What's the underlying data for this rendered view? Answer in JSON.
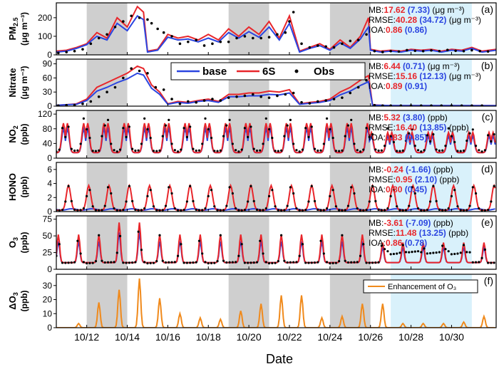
{
  "figure": {
    "xlabel": "Date",
    "x_ticks": [
      "10/12",
      "10/14",
      "10/16",
      "10/18",
      "10/20",
      "10/22",
      "10/24",
      "10/26",
      "10/28",
      "10/30"
    ],
    "x_range": [
      10.5,
      32.2
    ],
    "shaded_gray": [
      [
        12.0,
        14.0
      ],
      [
        19.0,
        21.0
      ],
      [
        24.0,
        26.0
      ]
    ],
    "shaded_blue": [
      [
        27.0,
        31.0
      ]
    ],
    "colors": {
      "base": "#2b45e0",
      "six_s": "#e8262b",
      "obs": "#000000",
      "enh": "#f08a1c",
      "gray": "#cfcfcf",
      "blue": "#d9f1fb",
      "mb_red": "#e8262b",
      "mb_blue": "#2b45e0"
    },
    "legend": {
      "base": "base",
      "six_s": "6S",
      "obs": "Obs"
    }
  },
  "chart_data": [
    {
      "type": "line",
      "panel": "(a)",
      "ylabel_main": "PM",
      "ylabel_sub": "2.5",
      "ylabel_unit": "(μg m⁻³)",
      "ylim": [
        0,
        280
      ],
      "yticks": [
        0,
        100,
        200
      ],
      "metrics": [
        {
          "label": "MB:",
          "red": "17.62",
          "blue": "(7.33)",
          "unit": "(μg m⁻³)"
        },
        {
          "label": "RMSE:",
          "red": "40.28",
          "blue": "(34.72)",
          "unit": "(μg m⁻³)"
        },
        {
          "label": "IOA:",
          "red": "0.86",
          "blue": "(0.86)",
          "unit": ""
        }
      ],
      "series": [
        {
          "name": "6S",
          "x": [
            10.5,
            11.0,
            11.5,
            12.0,
            12.5,
            13.0,
            13.5,
            14.0,
            14.5,
            14.8,
            15.0,
            15.5,
            16.0,
            16.5,
            17.0,
            17.5,
            18.0,
            18.5,
            19.0,
            19.5,
            20.0,
            20.5,
            21.0,
            21.5,
            22.0,
            22.5,
            23.0,
            23.5,
            24.0,
            24.5,
            25.0,
            25.5,
            25.9,
            26.0,
            26.5,
            27.0,
            27.5,
            28.0,
            28.5,
            29.0,
            29.5,
            30.0,
            30.5,
            31.0,
            31.5,
            32.2
          ],
          "y": [
            20,
            25,
            40,
            60,
            120,
            90,
            200,
            150,
            260,
            230,
            20,
            30,
            110,
            90,
            100,
            80,
            110,
            80,
            140,
            100,
            150,
            110,
            180,
            90,
            210,
            20,
            40,
            60,
            30,
            80,
            40,
            100,
            200,
            30,
            20,
            25,
            20,
            30,
            25,
            30,
            20,
            30,
            25,
            40,
            20,
            30
          ]
        },
        {
          "name": "base",
          "x": [
            10.5,
            11.0,
            11.5,
            12.0,
            12.5,
            13.0,
            13.5,
            14.0,
            14.5,
            14.8,
            15.0,
            15.5,
            16.0,
            16.5,
            17.0,
            17.5,
            18.0,
            18.5,
            19.0,
            19.5,
            20.0,
            20.5,
            21.0,
            21.5,
            22.0,
            22.5,
            23.0,
            23.5,
            24.0,
            24.5,
            25.0,
            25.5,
            25.9,
            26.0,
            26.5,
            27.0,
            27.5,
            28.0,
            28.5,
            29.0,
            29.5,
            30.0,
            30.5,
            31.0,
            31.5,
            32.2
          ],
          "y": [
            15,
            20,
            35,
            55,
            100,
            80,
            170,
            130,
            210,
            190,
            15,
            25,
            95,
            80,
            85,
            70,
            90,
            70,
            120,
            90,
            125,
            95,
            150,
            80,
            170,
            15,
            35,
            50,
            25,
            65,
            35,
            85,
            150,
            25,
            15,
            20,
            15,
            25,
            20,
            25,
            15,
            25,
            20,
            35,
            15,
            25
          ]
        },
        {
          "name": "Obs",
          "x": [
            10.6,
            11.0,
            11.4,
            11.8,
            12.2,
            12.6,
            13.0,
            13.4,
            13.8,
            14.2,
            14.6,
            15.0,
            15.2,
            15.5,
            15.8,
            16.2,
            16.6,
            17.0,
            17.4,
            17.8,
            18.2,
            18.6,
            19.0,
            19.4,
            19.8,
            20.2,
            20.6,
            21.0,
            21.4,
            21.8,
            22.0,
            22.2,
            22.6,
            23.0,
            23.4,
            23.8,
            24.2,
            24.6,
            25.0,
            25.4,
            25.8,
            26.2,
            26.6,
            27.0,
            27.4,
            27.8,
            28.2,
            28.6,
            29.0,
            29.4,
            29.8,
            30.2,
            30.6,
            31.0,
            31.4,
            31.8
          ],
          "y": [
            10,
            15,
            20,
            30,
            60,
            90,
            110,
            150,
            180,
            210,
            200,
            190,
            170,
            140,
            120,
            100,
            60,
            70,
            80,
            50,
            60,
            70,
            70,
            90,
            100,
            90,
            90,
            95,
            110,
            120,
            180,
            230,
            60,
            40,
            50,
            45,
            40,
            60,
            75,
            80,
            110,
            20,
            15,
            20,
            18,
            25,
            22,
            20,
            24,
            20,
            26,
            22,
            20,
            25,
            20,
            18
          ]
        }
      ]
    },
    {
      "type": "line",
      "panel": "(b)",
      "ylabel_main": "Nitrate",
      "ylabel_unit": "(μg m⁻³)",
      "ylim": [
        0,
        100
      ],
      "yticks": [
        0,
        30,
        60,
        90
      ],
      "metrics": [
        {
          "label": "MB:",
          "red": "6.44",
          "blue": "(0.71)",
          "unit": "(μg m⁻³)"
        },
        {
          "label": "RMSE:",
          "red": "15.16",
          "blue": "(12.13)",
          "unit": "(μg m⁻³)"
        },
        {
          "label": "IOA:",
          "red": "0.89",
          "blue": "(0.91)",
          "unit": ""
        }
      ],
      "series": [
        {
          "name": "6S",
          "x": [
            10.5,
            11.0,
            11.5,
            12.0,
            12.5,
            13.0,
            13.5,
            14.0,
            14.5,
            14.8,
            15.2,
            15.6,
            16.0,
            16.5,
            17.0,
            17.5,
            18.0,
            18.5,
            19.0,
            19.5,
            20.0,
            20.5,
            21.0,
            21.5,
            22.0,
            22.5,
            23.0,
            23.5,
            24.0,
            24.5,
            25.0,
            25.5,
            25.9,
            26.1,
            26.5,
            27.0,
            28.0,
            29.0,
            30.0,
            31.0,
            32.2
          ],
          "y": [
            2,
            3,
            5,
            15,
            40,
            50,
            60,
            70,
            85,
            80,
            45,
            30,
            5,
            10,
            8,
            12,
            15,
            10,
            25,
            25,
            28,
            28,
            32,
            30,
            35,
            5,
            8,
            10,
            15,
            30,
            40,
            55,
            65,
            3,
            2,
            1,
            1,
            1,
            1,
            1,
            1
          ]
        },
        {
          "name": "base",
          "x": [
            10.5,
            11.0,
            11.5,
            12.0,
            12.5,
            13.0,
            13.5,
            14.0,
            14.5,
            14.8,
            15.2,
            15.6,
            16.0,
            16.5,
            17.0,
            17.5,
            18.0,
            18.5,
            19.0,
            19.5,
            20.0,
            20.5,
            21.0,
            21.5,
            22.0,
            22.5,
            23.0,
            23.5,
            24.0,
            24.5,
            25.0,
            25.5,
            25.9,
            26.1,
            26.5,
            27.0,
            28.0,
            29.0,
            30.0,
            31.0,
            32.2
          ],
          "y": [
            2,
            3,
            4,
            12,
            32,
            40,
            50,
            58,
            70,
            66,
            38,
            25,
            4,
            8,
            6,
            10,
            12,
            8,
            20,
            20,
            22,
            22,
            25,
            24,
            28,
            4,
            6,
            8,
            12,
            24,
            32,
            44,
            52,
            2,
            2,
            1,
            1,
            1,
            1,
            1,
            1
          ]
        },
        {
          "name": "Obs",
          "x": [
            10.6,
            11.0,
            11.4,
            11.8,
            12.2,
            12.6,
            13.0,
            13.4,
            13.8,
            14.2,
            14.6,
            15.0,
            15.4,
            15.8,
            16.2,
            16.6,
            17.0,
            17.4,
            17.8,
            18.2,
            18.6,
            19.0,
            19.4,
            19.8,
            20.2,
            20.6,
            21.0,
            21.4,
            21.8,
            22.2,
            22.6,
            23.0,
            23.4,
            23.8,
            24.2,
            24.6,
            25.0,
            25.4,
            25.8,
            26.2,
            26.6,
            27.0,
            27.5,
            28.0,
            28.5,
            29.0,
            29.5,
            30.0,
            30.5,
            31.0,
            31.5
          ],
          "y": [
            1,
            2,
            2,
            5,
            10,
            20,
            30,
            40,
            60,
            80,
            75,
            70,
            40,
            35,
            15,
            5,
            10,
            8,
            12,
            15,
            12,
            18,
            20,
            22,
            25,
            20,
            18,
            22,
            25,
            28,
            8,
            6,
            10,
            12,
            15,
            18,
            28,
            40,
            55,
            2,
            1,
            1,
            1,
            1,
            1,
            1,
            1,
            1,
            1,
            1,
            1
          ]
        }
      ]
    },
    {
      "type": "line",
      "panel": "(c)",
      "ylabel_main": "NO",
      "ylabel_sub": "2",
      "ylabel_unit": "(ppb)",
      "ylim": [
        0,
        130
      ],
      "yticks": [
        0,
        40,
        80,
        120
      ],
      "metrics": [
        {
          "label": "MB:",
          "red": "5.32",
          "blue": "(3.80)",
          "unit": "(ppb)"
        },
        {
          "label": "RMSE:",
          "red": "16.40",
          "blue": "(13.85)",
          "unit": "(ppb)"
        },
        {
          "label": "IOA:",
          "red": "0.83",
          "blue": "(0.85)",
          "unit": ""
        }
      ],
      "series_note": "diurnal"
    },
    {
      "type": "line",
      "panel": "(d)",
      "ylabel_main": "HONO",
      "ylabel_unit": "(ppb)",
      "ylim": [
        0,
        7
      ],
      "yticks": [
        0,
        2,
        4,
        6
      ],
      "metrics": [
        {
          "label": "MB:",
          "red": "-0.24",
          "blue": "(-1.66)",
          "unit": "(ppb)"
        },
        {
          "label": "RMSE:",
          "red": "0.95",
          "blue": "(2.10)",
          "unit": "(ppb)"
        },
        {
          "label": "IOA:",
          "red": "0.80",
          "blue": "(0.45)",
          "unit": ""
        }
      ],
      "series_note": "diurnal"
    },
    {
      "type": "line",
      "panel": "(e)",
      "ylabel_main": "O",
      "ylabel_sub": "3",
      "ylabel_unit": "(ppb)",
      "ylim": [
        0,
        80
      ],
      "yticks": [
        0,
        25,
        50,
        75
      ],
      "metrics": [
        {
          "label": "MB:",
          "red": "-3.61",
          "blue": "(-7.09)",
          "unit": "(ppb)"
        },
        {
          "label": "RMSE:",
          "red": "11.48",
          "blue": "(13.25)",
          "unit": "(ppb)"
        },
        {
          "label": "IOA:",
          "red": "0.86",
          "blue": "(0.78)",
          "unit": ""
        }
      ],
      "series_note": "diurnal"
    },
    {
      "type": "line",
      "panel": "(f)",
      "ylabel_main": "ΔO",
      "ylabel_sub": "3",
      "ylabel_unit": "(ppb)",
      "ylim": [
        0,
        38
      ],
      "yticks": [
        0,
        10,
        20,
        30
      ],
      "legend": "Enhancement of O₃",
      "peaks": [
        {
          "day": 11,
          "v": 3
        },
        {
          "day": 12,
          "v": 18
        },
        {
          "day": 13,
          "v": 27
        },
        {
          "day": 14,
          "v": 35
        },
        {
          "day": 15,
          "v": 21
        },
        {
          "day": 16,
          "v": 10
        },
        {
          "day": 17,
          "v": 7
        },
        {
          "day": 18,
          "v": 6
        },
        {
          "day": 19,
          "v": 12
        },
        {
          "day": 20,
          "v": 17
        },
        {
          "day": 21,
          "v": 23
        },
        {
          "day": 22,
          "v": 23
        },
        {
          "day": 23,
          "v": 7
        },
        {
          "day": 24,
          "v": 8
        },
        {
          "day": 25,
          "v": 17
        },
        {
          "day": 26,
          "v": 17
        },
        {
          "day": 27,
          "v": 3
        },
        {
          "day": 28,
          "v": 3
        },
        {
          "day": 29,
          "v": 3
        },
        {
          "day": 30,
          "v": 4
        },
        {
          "day": 31,
          "v": 8
        }
      ]
    }
  ]
}
